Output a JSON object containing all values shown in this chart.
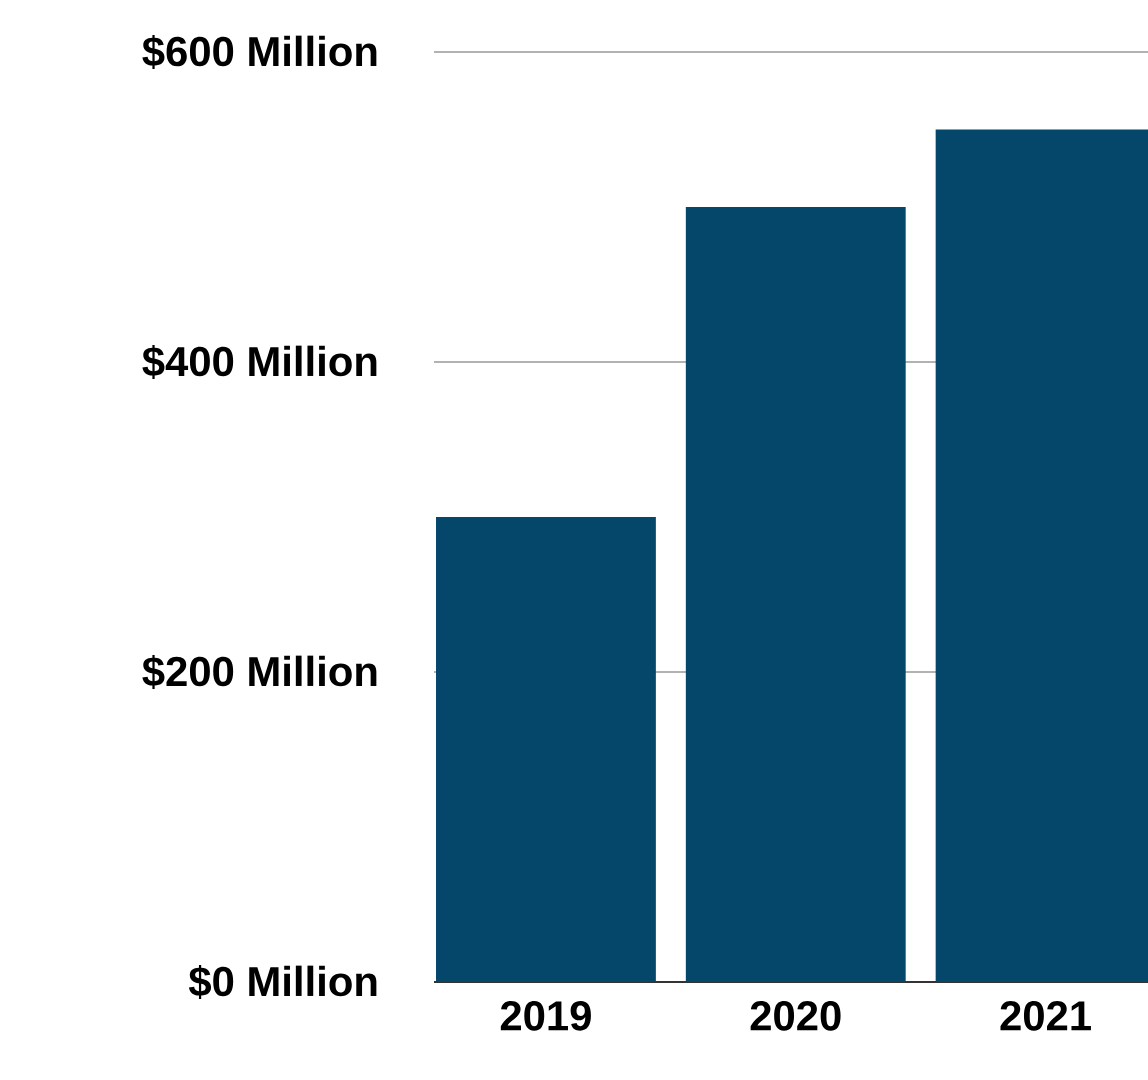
{
  "chart_data": {
    "type": "bar",
    "categories": [
      "2019",
      "2020",
      "2021"
    ],
    "values": [
      300,
      500,
      550
    ],
    "color": "#04476a",
    "ylim": [
      0,
      600
    ],
    "yticks": [
      {
        "value": 0,
        "label": "$0 Million"
      },
      {
        "value": 200,
        "label": "$200 Million"
      },
      {
        "value": 400,
        "label": "$400 Million"
      },
      {
        "value": 600,
        "label": "$600 Million"
      }
    ],
    "grid": "y"
  }
}
